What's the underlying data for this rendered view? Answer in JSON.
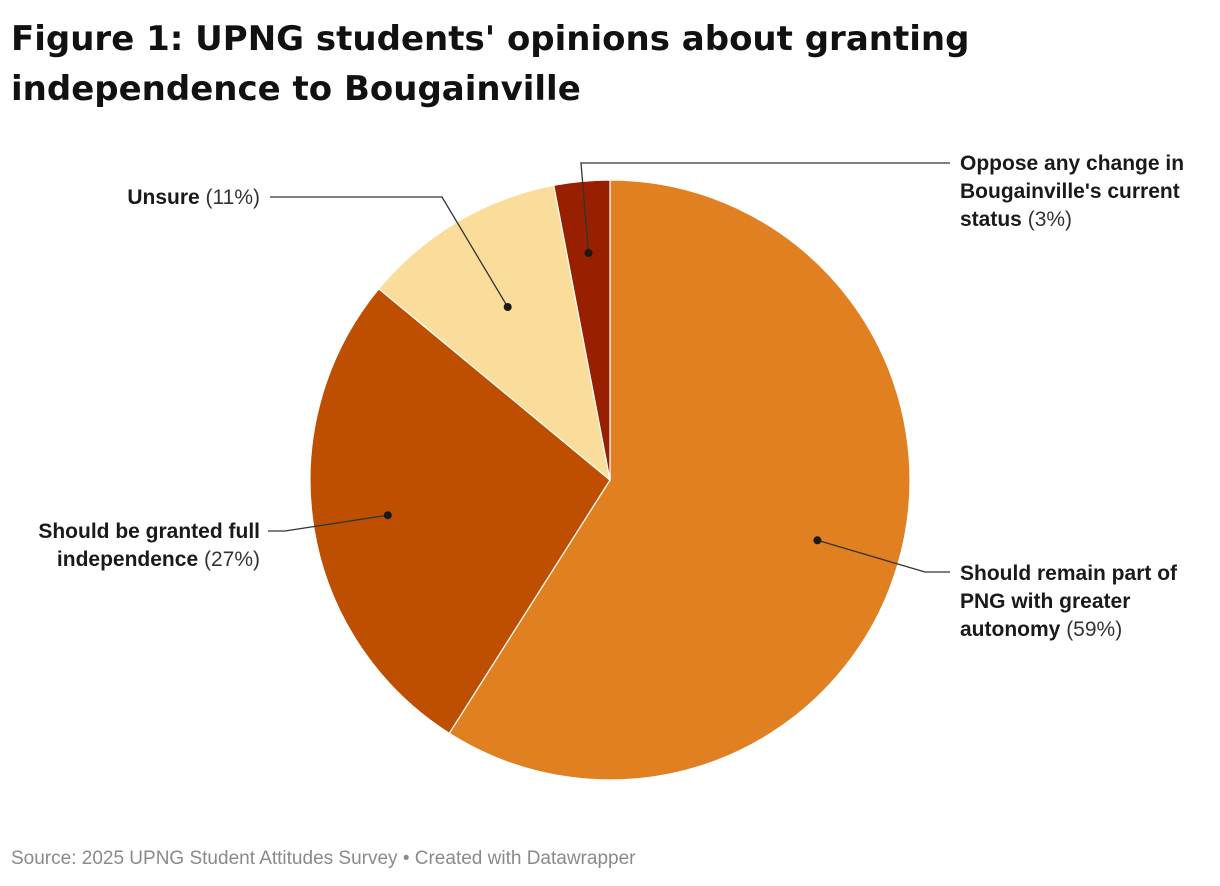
{
  "title": "Figure 1: UPNG students' opinions about granting independence to Bougainville",
  "footer": "Source: 2025 UPNG Student Attitudes Survey • Created with Datawrapper",
  "chart_data": {
    "type": "pie",
    "title": "Figure 1: UPNG students' opinions about granting independence to Bougainville",
    "slices": [
      {
        "label": "Should remain part of PNG with greater autonomy",
        "value": 59,
        "value_label": "(59%)",
        "color": "#e08020"
      },
      {
        "label": "Should be granted full independence",
        "value": 27,
        "value_label": "(27%)",
        "color": "#bf4f00"
      },
      {
        "label": "Unsure",
        "value": 11,
        "value_label": "(11%)",
        "color": "#fbdd9b"
      },
      {
        "label": "Oppose any change in Bougainville's current status",
        "value": 3,
        "value_label": "(3%)",
        "color": "#982000"
      }
    ],
    "start_angle": "12 o'clock",
    "direction": "clockwise",
    "labels": "outside with leader lines"
  }
}
